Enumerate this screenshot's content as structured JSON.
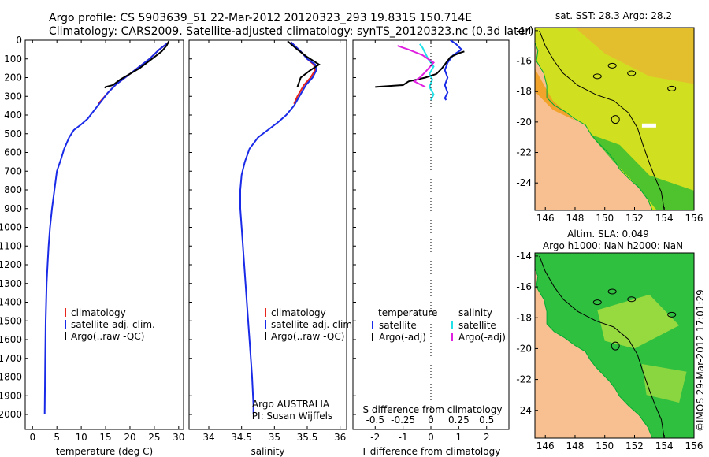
{
  "header": {
    "line1": "Argo profile: CS 5903639_51 22-Mar-2012 20120323_293 19.831S 150.714E",
    "line2": "Climatology: CARS2009. Satellite-adjusted climatology: synTS_20120323.nc (0.3d later)"
  },
  "colors": {
    "climatology": "#e8241c",
    "satellite": "#1a2be8",
    "argo": "#000000",
    "sat_salinity": "#20e0e8",
    "argo_adj_salinity": "#e020e0",
    "land": "#f8c090",
    "sst_warm": "#f0a020",
    "sst_mid": "#d0e020",
    "sst_cool": "#40c030",
    "sla_green": "#30c040",
    "sla_yellow": "#b0e040"
  },
  "chart_data": [
    {
      "type": "line",
      "name": "temperature",
      "xlabel": "temperature (deg C)",
      "ylabel": "",
      "xlim": [
        -1.5,
        31
      ],
      "ylim": [
        2080,
        0
      ],
      "xticks": [
        "0",
        "5",
        "10",
        "15",
        "20",
        "25",
        "30"
      ],
      "xtick_values": [
        0,
        5,
        10,
        15,
        20,
        25,
        30
      ],
      "yticks": [
        "0",
        "100",
        "200",
        "300",
        "400",
        "500",
        "600",
        "700",
        "800",
        "900",
        "1000",
        "1100",
        "1200",
        "1300",
        "1400",
        "1500",
        "1600",
        "1700",
        "1800",
        "1900",
        "2000"
      ],
      "ytick_values": [
        0,
        100,
        200,
        300,
        400,
        500,
        600,
        700,
        800,
        900,
        1000,
        1100,
        1200,
        1300,
        1400,
        1500,
        1600,
        1700,
        1800,
        1900,
        2000
      ],
      "legend": [
        "climatology",
        "satellite-adj. clim.",
        "Argo(..raw -QC)"
      ],
      "series": [
        {
          "name": "climatology",
          "color": "#e8241c",
          "x": [
            28,
            26,
            24,
            21,
            19,
            17,
            15.5,
            14.5,
            13.5
          ],
          "y": [
            10,
            50,
            100,
            160,
            200,
            240,
            280,
            310,
            340
          ]
        },
        {
          "name": "satellite-adj. clim.",
          "color": "#1a2be8",
          "x": [
            28,
            26,
            24,
            21,
            19,
            17,
            15.5,
            14,
            12.5,
            11.3,
            10,
            8.5,
            7.5,
            6.5,
            5.8,
            5,
            4.5,
            4,
            3.6,
            3.3,
            3.1,
            2.9,
            2.8,
            2.7,
            2.6,
            2.5
          ],
          "y": [
            10,
            50,
            100,
            160,
            200,
            240,
            280,
            330,
            380,
            420,
            450,
            480,
            520,
            580,
            640,
            700,
            800,
            900,
            1000,
            1100,
            1200,
            1300,
            1400,
            1500,
            1700,
            2000
          ]
        },
        {
          "name": "Argo(..raw -QC)",
          "color": "#000000",
          "x": [
            28,
            27.5,
            26.5,
            24.5,
            22,
            20,
            18,
            16.5,
            15,
            14.8
          ],
          "y": [
            5,
            30,
            60,
            100,
            150,
            180,
            210,
            240,
            250,
            255
          ]
        }
      ]
    },
    {
      "type": "line",
      "name": "salinity",
      "xlabel": "salinity",
      "xlim": [
        33.7,
        36.1
      ],
      "ylim": [
        2080,
        0
      ],
      "xticks": [
        "34",
        "34.5",
        "35",
        "35.5",
        "36"
      ],
      "xtick_values": [
        34,
        34.5,
        35,
        35.5,
        36
      ],
      "legend": [
        "climatology",
        "satellite-adj. clim.",
        "Argo(..raw -QC)"
      ],
      "annotation": [
        "Argo AUSTRALIA",
        "PI: Susan Wijffels"
      ],
      "series": [
        {
          "name": "climatology",
          "color": "#e8241c",
          "x": [
            35.25,
            35.4,
            35.5,
            35.6,
            35.62,
            35.55,
            35.45,
            35.35,
            35.3
          ],
          "y": [
            10,
            60,
            100,
            130,
            160,
            200,
            240,
            300,
            340
          ]
        },
        {
          "name": "satellite-adj. clim.",
          "color": "#1a2be8",
          "x": [
            35.25,
            35.4,
            35.5,
            35.62,
            35.64,
            35.58,
            35.48,
            35.38,
            35.3,
            35.18,
            35.05,
            34.9,
            34.75,
            34.62,
            34.55,
            34.5,
            34.48,
            34.48,
            34.5,
            34.54,
            34.58,
            34.62,
            34.66,
            34.68,
            34.68
          ],
          "y": [
            10,
            60,
            100,
            130,
            160,
            200,
            240,
            300,
            350,
            400,
            440,
            480,
            520,
            580,
            650,
            720,
            800,
            900,
            1000,
            1200,
            1400,
            1600,
            1800,
            1950,
            2000
          ]
        },
        {
          "name": "Argo(..raw -QC)",
          "color": "#000000",
          "x": [
            35.2,
            35.35,
            35.5,
            35.68,
            35.55,
            35.4,
            35.35
          ],
          "y": [
            5,
            50,
            90,
            130,
            160,
            200,
            250
          ]
        }
      ]
    },
    {
      "type": "line",
      "name": "difference",
      "xlabel": "T difference from climatology",
      "xlabel_top": "S difference from climatology",
      "xlim": [
        -2.8,
        2.8
      ],
      "ylim": [
        2080,
        0
      ],
      "xticks": [
        "-2",
        "-1",
        "0",
        "1",
        "2"
      ],
      "xtick_values": [
        -2,
        -1,
        0,
        1,
        2
      ],
      "sticks": [
        "-0.5",
        "-0.25",
        "0",
        "0.25",
        "0.5"
      ],
      "stick_values": [
        -0.5,
        -0.25,
        0,
        0.25,
        0.5
      ],
      "legend_temperature": {
        "title": "temperature",
        "items": [
          "satellite",
          "Argo(-adj)"
        ]
      },
      "legend_salinity": {
        "title": "salinity",
        "items": [
          "satellite",
          "Argo(-adj)"
        ]
      },
      "series": [
        {
          "name": "T satellite",
          "color": "#1a2be8",
          "x": [
            0.7,
            0.9,
            1.1,
            0.8,
            0.6,
            0.5,
            0.6,
            0.5,
            0.6,
            0.5,
            0.55
          ],
          "y": [
            0,
            20,
            50,
            80,
            120,
            160,
            200,
            240,
            280,
            310,
            320
          ]
        },
        {
          "name": "T Argo(-adj)",
          "color": "#000000",
          "x": [
            1.2,
            1.0,
            0.7,
            0.6,
            0.4,
            0.2,
            -0.2,
            -0.8,
            -1.0,
            -2.0
          ],
          "y": [
            60,
            70,
            90,
            110,
            150,
            180,
            200,
            220,
            240,
            250
          ]
        },
        {
          "name": "S satellite",
          "color": "#20e0e8",
          "x": [
            -0.4,
            -0.3,
            -0.2,
            -0.1,
            0.1,
            -0.05,
            0.05,
            -0.05,
            0.1,
            0.0
          ],
          "y": [
            20,
            40,
            70,
            100,
            140,
            180,
            210,
            250,
            290,
            320
          ]
        },
        {
          "name": "S Argo(-adj)",
          "color": "#e020e0",
          "x": [
            -1.2,
            -0.8,
            -0.3,
            0.1,
            -0.2,
            -0.4,
            -0.6,
            -0.2
          ],
          "y": [
            30,
            50,
            80,
            120,
            170,
            200,
            220,
            250
          ]
        }
      ]
    },
    {
      "type": "heatmap",
      "name": "sst_map",
      "title": "sat. SST: 28.3 Argo: 28.2",
      "xlim": [
        145.3,
        156
      ],
      "ylim": [
        -25.8,
        -13.8
      ],
      "xticks": [
        "146",
        "148",
        "150",
        "152",
        "154",
        "156"
      ],
      "xtick_values": [
        146,
        148,
        150,
        152,
        154,
        156
      ],
      "yticks": [
        "-14",
        "-16",
        "-18",
        "-20",
        "-22",
        "-24"
      ],
      "ytick_values": [
        -14,
        -16,
        -18,
        -20,
        -22,
        -24
      ],
      "argo_position": [
        150.714,
        -19.831
      ]
    },
    {
      "type": "heatmap",
      "name": "sla_map",
      "title_lines": [
        "Altim. SLA: 0.049",
        "Argo h1000: NaN h2000: NaN"
      ],
      "xlim": [
        145.3,
        156
      ],
      "ylim": [
        -25.8,
        -13.8
      ],
      "xticks": [
        "146",
        "148",
        "150",
        "152",
        "154",
        "156"
      ],
      "xtick_values": [
        146,
        148,
        150,
        152,
        154,
        156
      ],
      "yticks": [
        "-14",
        "-16",
        "-18",
        "-20",
        "-22",
        "-24"
      ],
      "ytick_values": [
        -14,
        -16,
        -18,
        -20,
        -22,
        -24
      ],
      "argo_position": [
        150.714,
        -19.831
      ]
    }
  ],
  "footer": {
    "stamp": "©IMOS 29-Mar-2012 17:01:29"
  }
}
